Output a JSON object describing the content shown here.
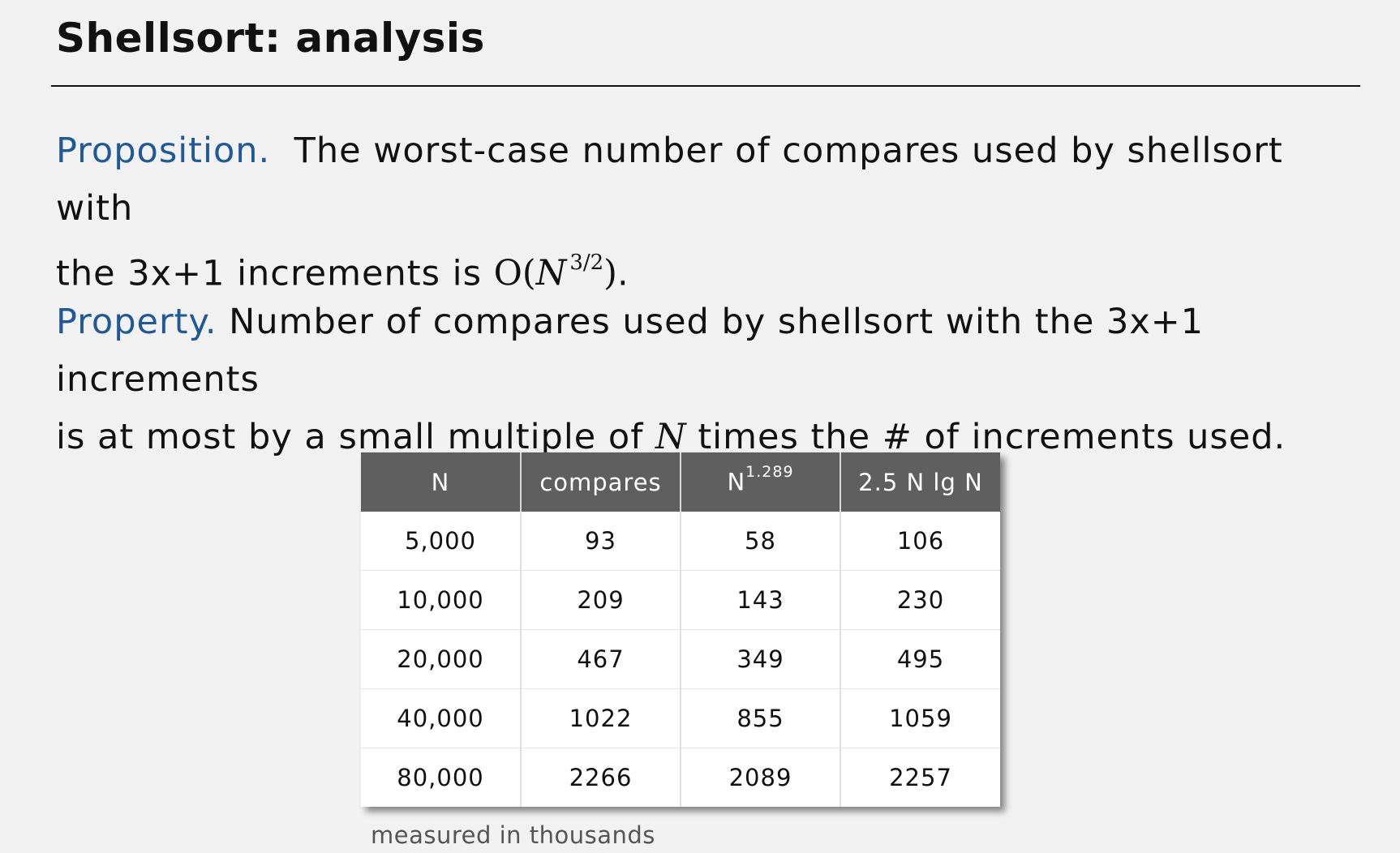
{
  "title": "Shellsort:  analysis",
  "proposition": {
    "keyword": "Proposition.",
    "text_line1": "The worst-case number of compares used by shellsort with",
    "text_line2_prefix": "the 3x+1 increments is ",
    "math_open": "O(",
    "math_var": "N",
    "math_exp": "3/2",
    "math_close": ")",
    "text_suffix": "."
  },
  "property": {
    "keyword": "Property.",
    "text_line1": "Number of compares used by shellsort with the 3x+1 increments",
    "text_line2_prefix": "is at most by a small multiple of ",
    "math_var": "N",
    "text_line2_suffix": " times the # of increments used."
  },
  "table": {
    "headers": {
      "n": "N",
      "compares": "compares",
      "power_base": "N",
      "power_exp": "1.289",
      "nlgn": "2.5 N lg N"
    },
    "rows": [
      [
        "5,000",
        "93",
        "58",
        "106"
      ],
      [
        "10,000",
        "209",
        "143",
        "230"
      ],
      [
        "20,000",
        "467",
        "349",
        "495"
      ],
      [
        "40,000",
        "1022",
        "855",
        "1059"
      ],
      [
        "80,000",
        "2266",
        "2089",
        "2257"
      ]
    ],
    "caption": "measured in thousands"
  }
}
